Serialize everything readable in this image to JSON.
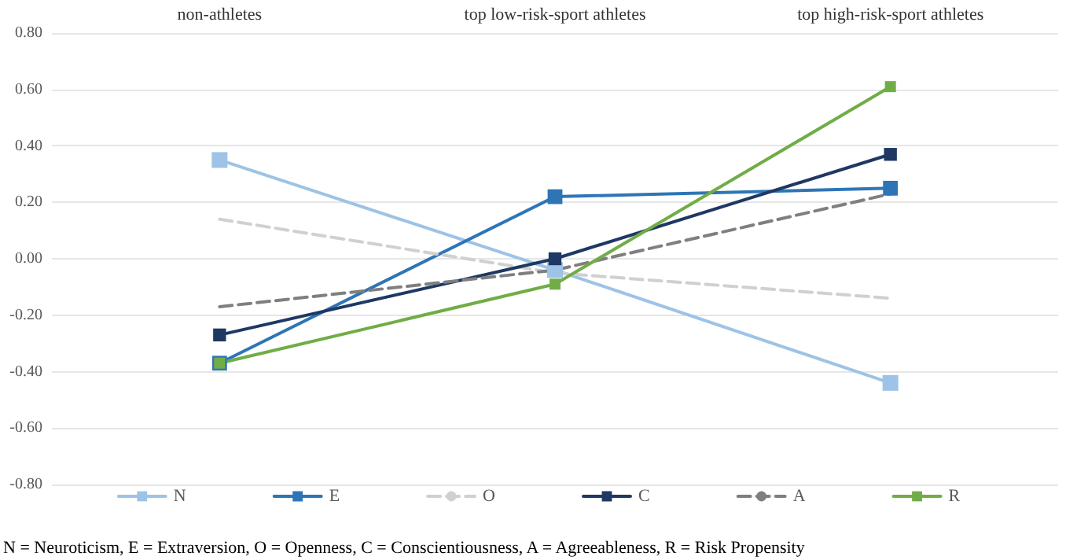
{
  "chart_data": {
    "type": "line",
    "categories": [
      "non-athletes",
      "top low-risk-sport athletes",
      "top high-risk-sport athletes"
    ],
    "series": [
      {
        "name": "N",
        "color": "#9dc3e6",
        "values": [
          0.35,
          -0.04,
          -0.44
        ],
        "marker": "square",
        "line_style": "solid"
      },
      {
        "name": "E",
        "color": "#2e75b6",
        "values": [
          -0.37,
          0.22,
          0.25
        ],
        "marker": "square",
        "line_style": "solid"
      },
      {
        "name": "O",
        "color": "#d0d0d0",
        "values": [
          0.14,
          -0.05,
          -0.14
        ],
        "marker": "none",
        "line_style": "dashed"
      },
      {
        "name": "C",
        "color": "#1f3864",
        "values": [
          -0.27,
          0.0,
          0.37
        ],
        "marker": "square",
        "line_style": "solid"
      },
      {
        "name": "A",
        "color": "#7f7f7f",
        "values": [
          -0.17,
          -0.04,
          0.23
        ],
        "marker": "none",
        "line_style": "dashed"
      },
      {
        "name": "R",
        "color": "#70ad47",
        "values": [
          -0.37,
          -0.09,
          0.61
        ],
        "marker": "square",
        "line_style": "solid"
      }
    ],
    "ylim": [
      -0.8,
      0.8
    ],
    "yticks": [
      {
        "value": -0.8,
        "label": "-0.80"
      },
      {
        "value": -0.6,
        "label": "-0.60"
      },
      {
        "value": -0.4,
        "label": "-0.40"
      },
      {
        "value": -0.2,
        "label": "-0.20"
      },
      {
        "value": 0,
        "label": "0.00"
      },
      {
        "value": 0.2,
        "label": "0.20"
      },
      {
        "value": 0.4,
        "label": "0.40"
      },
      {
        "value": 0.6,
        "label": "0.60"
      },
      {
        "value": 0.8,
        "label": "0.80"
      }
    ],
    "grid": "y",
    "legend": "bottom",
    "annotations": [
      "N = Neuroticism, E = Extraversion, O = Openness, C = Conscientiousness, A = Agreeableness, R = Risk Propensity"
    ]
  }
}
